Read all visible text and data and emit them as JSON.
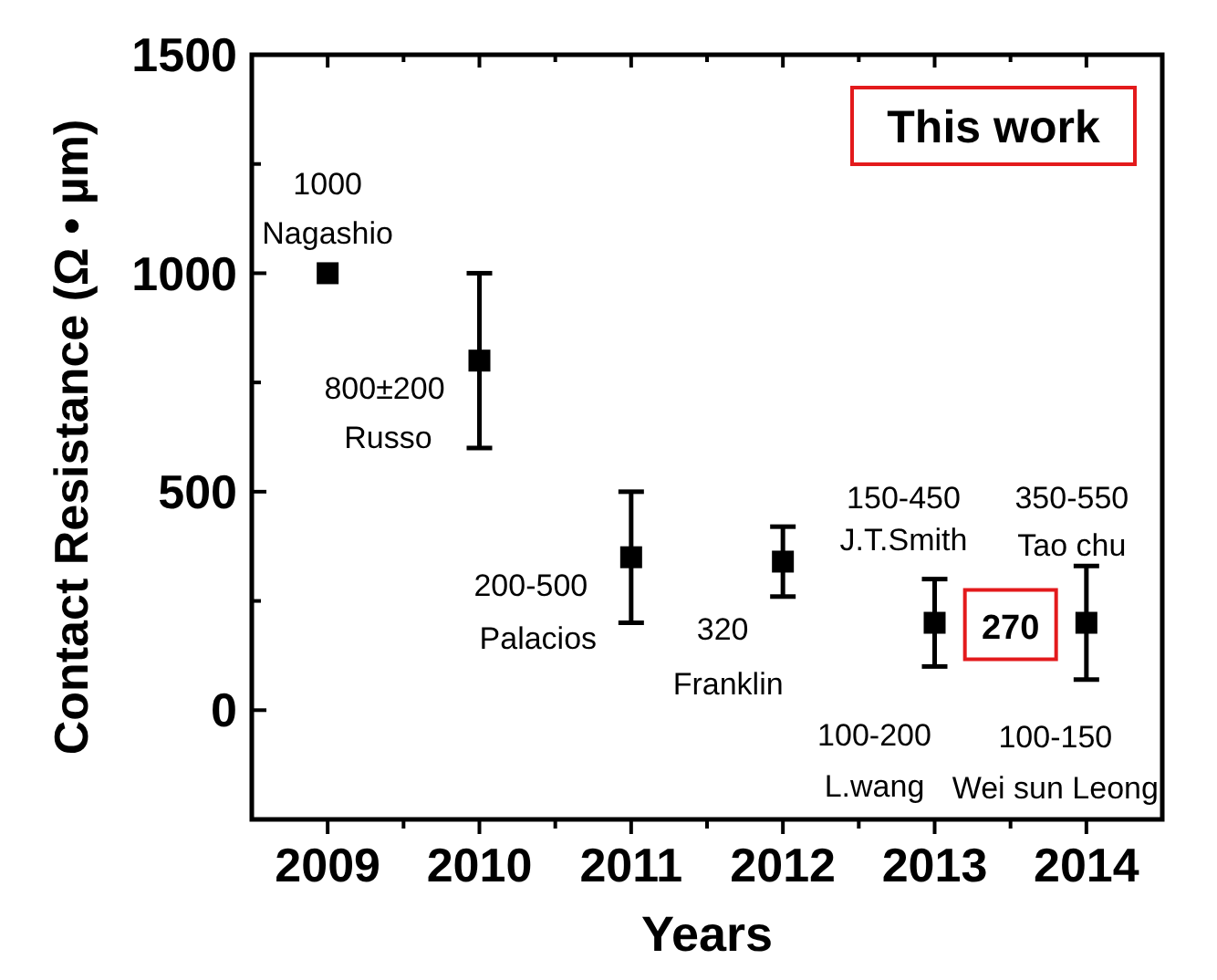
{
  "chart_data": {
    "type": "scatter",
    "xlabel": "Years",
    "ylabel": "Contact Resistance (Ω • µm)",
    "x": [
      2009,
      2010,
      2011,
      2012,
      2013,
      2014
    ],
    "values": [
      1000,
      800,
      350,
      340,
      200,
      200
    ],
    "errors": [
      null,
      [
        600,
        1000
      ],
      [
        200,
        500
      ],
      [
        260,
        420
      ],
      [
        100,
        300
      ],
      [
        70,
        330
      ]
    ],
    "color": "#000000",
    "marker": "square",
    "xlim": [
      2008.5,
      2014.5
    ],
    "xticks": [
      2009,
      {
        "value": 2009.5,
        "label": null
      },
      2010,
      {
        "value": 2010.5,
        "label": null
      },
      2011,
      {
        "value": 2011.5,
        "label": null
      },
      2012,
      {
        "value": 2012.5,
        "label": null
      },
      2013,
      {
        "value": 2013.5,
        "label": null
      },
      2014
    ],
    "ylim": [
      -250,
      1500
    ],
    "yticks": [
      {
        "value": -250,
        "label": null
      },
      0,
      {
        "value": 250,
        "label": null
      },
      500,
      {
        "value": 750,
        "label": null
      },
      1000,
      {
        "value": 1250,
        "label": null
      },
      1500
    ],
    "annotations": [
      "This work",
      "270",
      "1000",
      "Nagashio",
      "800±200",
      "Russo",
      "200-500",
      "Palacios",
      "320",
      "Franklin",
      "150-450",
      "J.T.Smith",
      "350-550",
      "Tao chu",
      "100-200",
      "L.wang",
      "100-150",
      "Wei sun Leong"
    ]
  }
}
